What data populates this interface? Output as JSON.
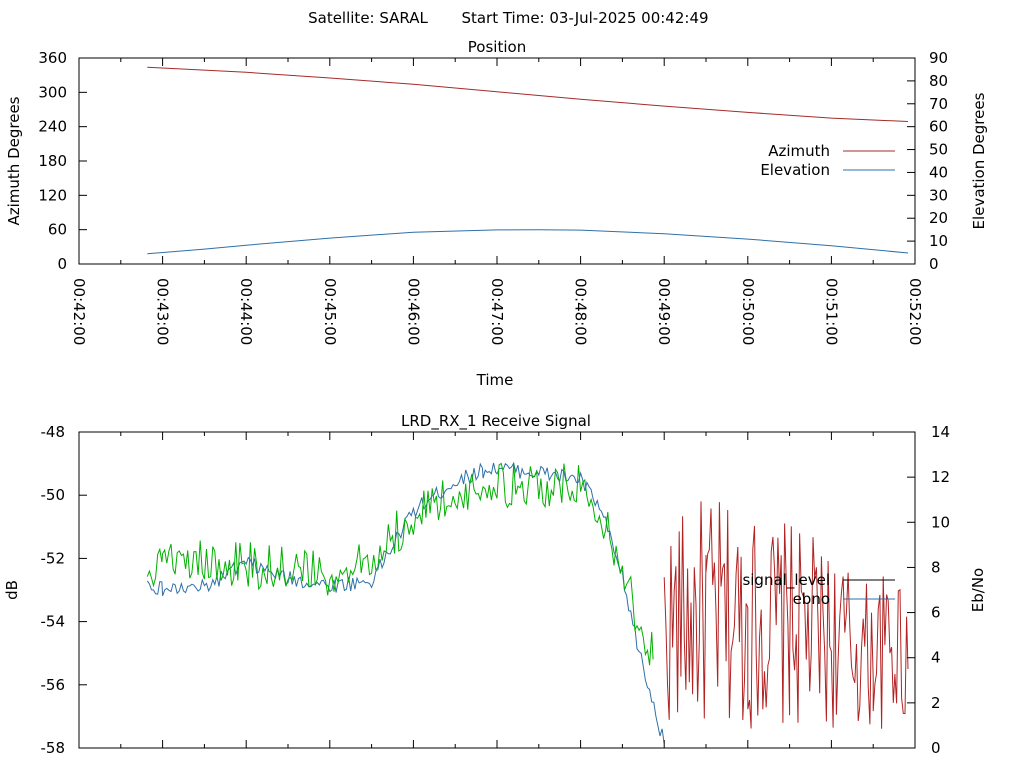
{
  "header": {
    "satellite_label": "Satellite: SARAL",
    "start_time_label": "Start Time: 03-Jul-2025 00:42:49"
  },
  "colors": {
    "azimuth": "#a52a2a",
    "elevation": "#2f6fa8",
    "signal_level": "#00b000",
    "ebno": "#2f6fa8",
    "ebno_tail": "#b22222",
    "legend_signal_swatch": "#000000"
  },
  "chart_data": [
    {
      "type": "line",
      "title": "Position",
      "xlabel": "Time",
      "ylabel": "Azimuth Degrees",
      "y2label": "Elevation Degrees",
      "grid": false,
      "legend_position": "right",
      "x_ticks": [
        "00:42:00",
        "00:43:00",
        "00:44:00",
        "00:45:00",
        "00:46:00",
        "00:47:00",
        "00:48:00",
        "00:49:00",
        "00:50:00",
        "00:51:00",
        "00:52:00"
      ],
      "xlim": [
        "00:42:00",
        "00:52:00"
      ],
      "ylim": [
        0,
        360
      ],
      "y_ticks": [
        0,
        60,
        120,
        180,
        240,
        300,
        360
      ],
      "y2lim": [
        0,
        90
      ],
      "y2_ticks": [
        0,
        10,
        20,
        30,
        40,
        50,
        60,
        70,
        80,
        90
      ],
      "series": [
        {
          "name": "Azimuth",
          "axis": "left",
          "x": [
            "00:42:49",
            "00:44:00",
            "00:45:00",
            "00:46:00",
            "00:47:00",
            "00:48:00",
            "00:49:00",
            "00:50:00",
            "00:51:00",
            "00:51:55"
          ],
          "y": [
            344,
            335,
            325,
            314,
            301,
            288,
            276,
            265,
            255,
            249
          ]
        },
        {
          "name": "Elevation",
          "axis": "right",
          "x": [
            "00:42:49",
            "00:43:30",
            "00:44:00",
            "00:45:00",
            "00:46:00",
            "00:47:00",
            "00:47:30",
            "00:48:00",
            "00:49:00",
            "00:50:00",
            "00:51:00",
            "00:51:55"
          ],
          "y": [
            4.5,
            6.5,
            8.2,
            11.3,
            13.9,
            14.9,
            15.0,
            14.8,
            13.2,
            10.9,
            8.0,
            4.8
          ]
        }
      ]
    },
    {
      "type": "line",
      "title": "LRD_RX_1 Receive Signal",
      "xlabel": "",
      "ylabel": "dB",
      "y2label": "Eb/No",
      "grid": false,
      "legend_position": "right",
      "xlim": [
        "00:42:00",
        "00:52:00"
      ],
      "ylim": [
        -58,
        -48
      ],
      "y_ticks": [
        -58,
        -56,
        -54,
        -52,
        -50,
        -48
      ],
      "y2lim": [
        0,
        14
      ],
      "y2_ticks": [
        0,
        2,
        4,
        6,
        8,
        10,
        12,
        14
      ],
      "series": [
        {
          "name": "signal_level",
          "axis": "left",
          "x": [
            "00:42:49",
            "00:43:00",
            "00:43:30",
            "00:44:00",
            "00:44:30",
            "00:45:00",
            "00:45:30",
            "00:46:00",
            "00:46:30",
            "00:46:50",
            "00:47:00",
            "00:47:30",
            "00:48:00",
            "00:48:15",
            "00:48:30",
            "00:48:45",
            "00:48:52"
          ],
          "y": [
            -52.7,
            -52.0,
            -52.3,
            -52.5,
            -52.6,
            -52.8,
            -52.2,
            -51.0,
            -50.3,
            -49.7,
            -50.0,
            -49.9,
            -50.1,
            -51.0,
            -52.8,
            -54.5,
            -55.2
          ]
        },
        {
          "name": "ebno",
          "axis": "right",
          "x": [
            "00:42:49",
            "00:43:00",
            "00:43:30",
            "00:44:00",
            "00:44:30",
            "00:45:00",
            "00:45:30",
            "00:46:00",
            "00:46:30",
            "00:46:50",
            "00:47:00",
            "00:47:30",
            "00:48:00",
            "00:48:15",
            "00:48:30",
            "00:48:45",
            "00:49:00"
          ],
          "y": [
            7.3,
            7.0,
            7.1,
            8.2,
            7.5,
            7.2,
            7.4,
            10.5,
            11.8,
            12.3,
            12.4,
            12.2,
            11.9,
            10.5,
            7.5,
            3.5,
            0.2
          ]
        },
        {
          "name": "ebno_tail",
          "axis": "right",
          "x": [
            "00:49:00",
            "00:49:30",
            "00:50:00",
            "00:50:30",
            "00:51:00",
            "00:51:30",
            "00:51:55"
          ],
          "y": [
            4.0,
            4.5,
            4.2,
            4.0,
            3.5,
            2.8,
            3.5
          ]
        }
      ],
      "legend": [
        "signal_level",
        "ebno"
      ]
    }
  ]
}
